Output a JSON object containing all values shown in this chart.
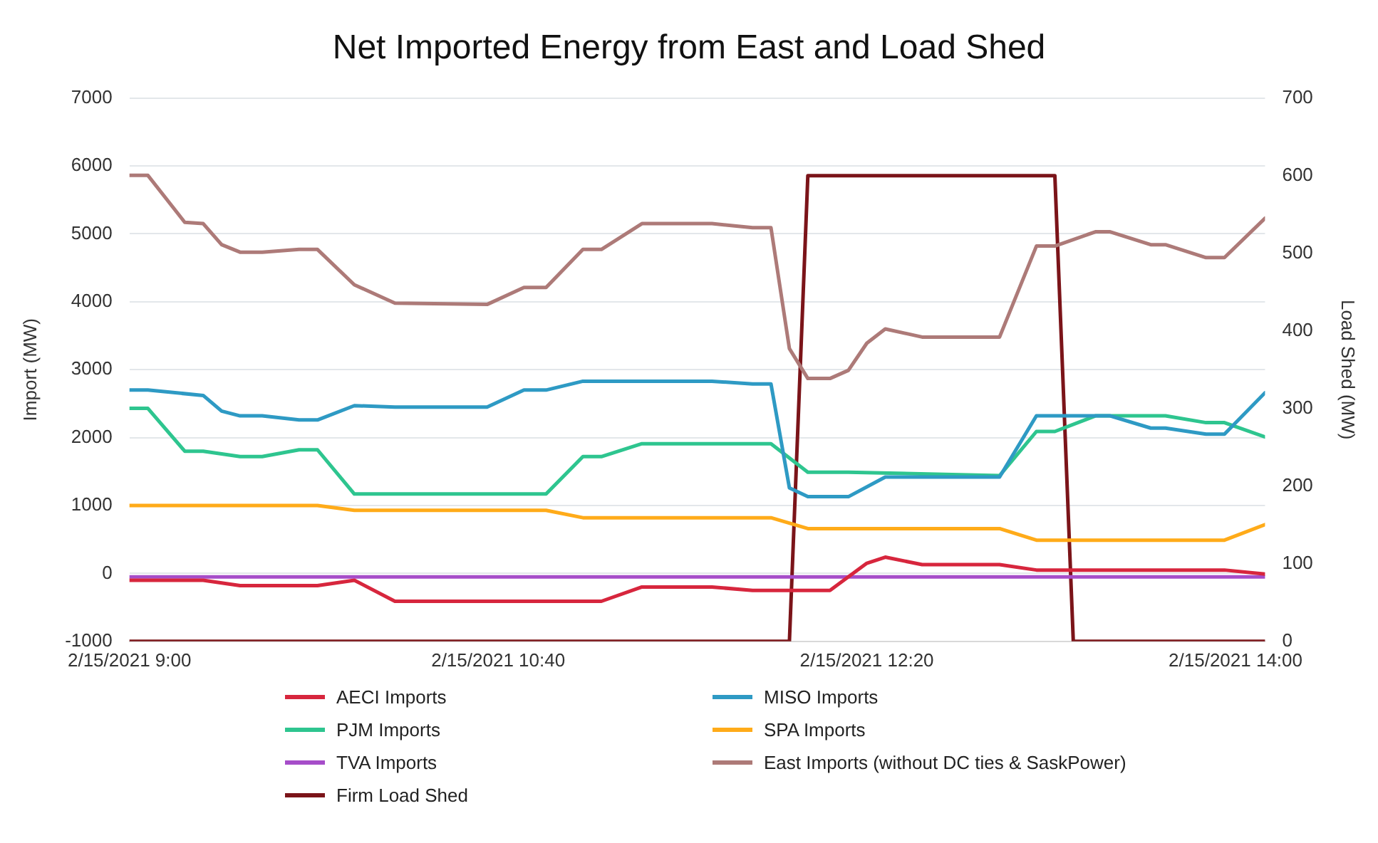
{
  "chart_data": {
    "type": "line",
    "title": "Net Imported Energy from East and Load Shed",
    "ylabel": "Import (MW)",
    "y2label": "Load Shed (MW)",
    "xlim": [
      "2021-02-15T09:00",
      "2021-02-15T14:08"
    ],
    "xticks": [
      {
        "value": "2021-02-15T09:00",
        "label": "2/15/2021 9:00"
      },
      {
        "value": "2021-02-15T10:40",
        "label": "2/15/2021 10:40"
      },
      {
        "value": "2021-02-15T12:20",
        "label": "2/15/2021 12:20"
      },
      {
        "value": "2021-02-15T14:00",
        "label": "2/15/2021 14:00"
      }
    ],
    "ylim": [
      -1000,
      7000
    ],
    "yticks": [
      -1000,
      0,
      1000,
      2000,
      3000,
      4000,
      5000,
      6000,
      7000
    ],
    "y2lim": [
      0,
      700
    ],
    "y2ticks": [
      0,
      100,
      200,
      300,
      400,
      500,
      600,
      700
    ],
    "grid": "y",
    "legend": "bottom",
    "marker": "none",
    "line_style": "solid",
    "series": [
      {
        "name": "AECI Imports",
        "color": "#d7263d",
        "x": [
          "2021-02-15T09:00",
          "2021-02-15T09:20",
          "2021-02-15T09:30",
          "2021-02-15T09:51",
          "2021-02-15T10:01",
          "2021-02-15T10:12",
          "2021-02-15T11:08",
          "2021-02-15T11:19",
          "2021-02-15T11:38",
          "2021-02-15T11:49",
          "2021-02-15T12:10",
          "2021-02-15T12:20",
          "2021-02-15T12:25",
          "2021-02-15T12:35",
          "2021-02-15T12:56",
          "2021-02-15T13:06",
          "2021-02-15T13:57",
          "2021-02-15T14:08"
        ],
        "values": [
          -100,
          -100,
          -180,
          -180,
          -100,
          -410,
          -410,
          -200,
          -200,
          -250,
          -250,
          150,
          240,
          130,
          130,
          50,
          50,
          -10
        ]
      },
      {
        "name": "MISO Imports",
        "color": "#2e9ac4",
        "x": [
          "2021-02-15T09:00",
          "2021-02-15T09:05",
          "2021-02-15T09:20",
          "2021-02-15T09:25",
          "2021-02-15T09:30",
          "2021-02-15T09:36",
          "2021-02-15T09:46",
          "2021-02-15T09:51",
          "2021-02-15T10:01",
          "2021-02-15T10:12",
          "2021-02-15T10:37",
          "2021-02-15T10:47",
          "2021-02-15T10:53",
          "2021-02-15T11:03",
          "2021-02-15T11:38",
          "2021-02-15T11:49",
          "2021-02-15T11:54",
          "2021-02-15T11:59",
          "2021-02-15T12:04",
          "2021-02-15T12:15",
          "2021-02-15T12:25",
          "2021-02-15T12:56",
          "2021-02-15T13:06",
          "2021-02-15T13:26",
          "2021-02-15T13:37",
          "2021-02-15T13:41",
          "2021-02-15T13:52",
          "2021-02-15T13:57",
          "2021-02-15T14:08"
        ],
        "values": [
          2700,
          2700,
          2620,
          2390,
          2320,
          2320,
          2260,
          2260,
          2470,
          2450,
          2450,
          2700,
          2700,
          2830,
          2830,
          2790,
          2790,
          1260,
          1130,
          1130,
          1420,
          1420,
          2320,
          2320,
          2140,
          2140,
          2050,
          2050,
          2660
        ]
      },
      {
        "name": "PJM Imports",
        "color": "#2ec58f",
        "x": [
          "2021-02-15T09:00",
          "2021-02-15T09:05",
          "2021-02-15T09:15",
          "2021-02-15T09:20",
          "2021-02-15T09:30",
          "2021-02-15T09:36",
          "2021-02-15T09:46",
          "2021-02-15T09:51",
          "2021-02-15T10:01",
          "2021-02-15T10:53",
          "2021-02-15T11:03",
          "2021-02-15T11:08",
          "2021-02-15T11:19",
          "2021-02-15T11:54",
          "2021-02-15T12:04",
          "2021-02-15T12:15",
          "2021-02-15T12:56",
          "2021-02-15T13:06",
          "2021-02-15T13:11",
          "2021-02-15T13:22",
          "2021-02-15T13:41",
          "2021-02-15T13:52",
          "2021-02-15T13:57",
          "2021-02-15T14:08"
        ],
        "values": [
          2430,
          2430,
          1800,
          1800,
          1720,
          1720,
          1820,
          1820,
          1170,
          1170,
          1720,
          1720,
          1910,
          1910,
          1490,
          1490,
          1440,
          2090,
          2090,
          2320,
          2320,
          2220,
          2220,
          2010
        ]
      },
      {
        "name": "SPA Imports",
        "color": "#ffab19",
        "x": [
          "2021-02-15T09:00",
          "2021-02-15T09:51",
          "2021-02-15T10:01",
          "2021-02-15T10:53",
          "2021-02-15T11:03",
          "2021-02-15T11:54",
          "2021-02-15T12:04",
          "2021-02-15T12:56",
          "2021-02-15T13:06",
          "2021-02-15T13:57",
          "2021-02-15T14:08"
        ],
        "values": [
          1000,
          1000,
          930,
          930,
          820,
          820,
          660,
          660,
          490,
          490,
          720
        ]
      },
      {
        "name": "TVA Imports",
        "color": "#a64dc9",
        "x": [
          "2021-02-15T09:00",
          "2021-02-15T14:08"
        ],
        "values": [
          -50,
          -50
        ]
      },
      {
        "name": "East Imports (without DC ties & SaskPower)",
        "color": "#ad7a78",
        "x": [
          "2021-02-15T09:00",
          "2021-02-15T09:05",
          "2021-02-15T09:15",
          "2021-02-15T09:20",
          "2021-02-15T09:25",
          "2021-02-15T09:30",
          "2021-02-15T09:36",
          "2021-02-15T09:46",
          "2021-02-15T09:51",
          "2021-02-15T10:01",
          "2021-02-15T10:12",
          "2021-02-15T10:37",
          "2021-02-15T10:47",
          "2021-02-15T10:53",
          "2021-02-15T11:03",
          "2021-02-15T11:08",
          "2021-02-15T11:19",
          "2021-02-15T11:38",
          "2021-02-15T11:49",
          "2021-02-15T11:54",
          "2021-02-15T11:59",
          "2021-02-15T12:04",
          "2021-02-15T12:10",
          "2021-02-15T12:15",
          "2021-02-15T12:20",
          "2021-02-15T12:25",
          "2021-02-15T12:35",
          "2021-02-15T12:56",
          "2021-02-15T13:06",
          "2021-02-15T13:11",
          "2021-02-15T13:22",
          "2021-02-15T13:26",
          "2021-02-15T13:37",
          "2021-02-15T13:41",
          "2021-02-15T13:52",
          "2021-02-15T13:57",
          "2021-02-15T14:08"
        ],
        "values": [
          5860,
          5860,
          5170,
          5150,
          4840,
          4730,
          4730,
          4770,
          4770,
          4250,
          3980,
          3960,
          4210,
          4210,
          4770,
          4770,
          5150,
          5150,
          5090,
          5090,
          3310,
          2870,
          2870,
          2990,
          3390,
          3600,
          3480,
          3480,
          4820,
          4820,
          5030,
          5030,
          4840,
          4840,
          4650,
          4650,
          5230
        ]
      },
      {
        "name": "Firm Load Shed",
        "color": "#7b1419",
        "axis": "y2",
        "x": [
          "2021-02-15T09:00",
          "2021-02-15T11:59",
          "2021-02-15T12:04",
          "2021-02-15T13:11",
          "2021-02-15T13:16",
          "2021-02-15T14:08"
        ],
        "values": [
          0,
          0,
          600,
          600,
          0,
          0
        ]
      }
    ]
  }
}
